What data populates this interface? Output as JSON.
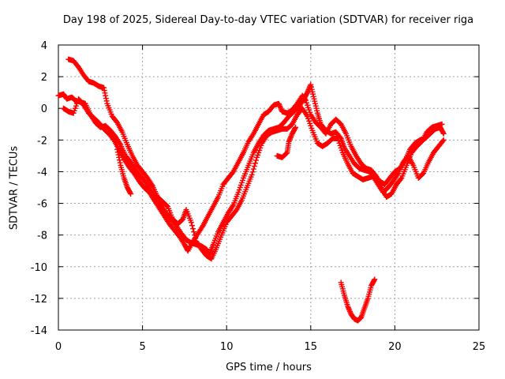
{
  "chart_data": {
    "type": "scatter",
    "title": "Day 198 of 2025, Sidereal Day-to-day VTEC variation (SDTVAR) for receiver riga",
    "xlabel": "GPS time / hours",
    "ylabel": "SDTVAR / TECUs",
    "xlim": [
      0,
      25
    ],
    "ylim": [
      -14,
      4
    ],
    "xticks": [
      "0",
      "5",
      "10",
      "15",
      "20",
      "25"
    ],
    "yticks": [
      "4",
      "2",
      "0",
      "-2",
      "-4",
      "-6",
      "-8",
      "-10",
      "-12",
      "-14"
    ],
    "grid": true,
    "marker": "+",
    "series_color": "#ff0000",
    "series": [
      {
        "points": [
          [
            0.0,
            0.8
          ],
          [
            0.3,
            0.9
          ],
          [
            0.5,
            0.6
          ],
          [
            0.8,
            0.7
          ],
          [
            1.0,
            0.5
          ],
          [
            1.3,
            0.4
          ],
          [
            1.6,
            0.3
          ],
          [
            1.9,
            -0.4
          ],
          [
            2.2,
            -0.9
          ],
          [
            2.5,
            -1.2
          ],
          [
            2.8,
            -1.1
          ],
          [
            3.1,
            -1.4
          ],
          [
            3.4,
            -1.8
          ],
          [
            3.7,
            -2.3
          ],
          [
            4.0,
            -3.0
          ],
          [
            4.3,
            -3.4
          ],
          [
            4.6,
            -3.9
          ],
          [
            4.9,
            -4.3
          ],
          [
            5.2,
            -4.7
          ],
          [
            5.5,
            -5.2
          ],
          [
            5.8,
            -5.7
          ],
          [
            6.1,
            -6.1
          ],
          [
            6.4,
            -6.6
          ],
          [
            6.7,
            -7.0
          ],
          [
            7.0,
            -7.4
          ],
          [
            7.3,
            -7.9
          ],
          [
            7.6,
            -8.3
          ],
          [
            7.9,
            -8.5
          ],
          [
            8.2,
            -8.6
          ],
          [
            8.5,
            -8.7
          ],
          [
            8.8,
            -8.9
          ],
          [
            9.0,
            -9.2
          ],
          [
            9.2,
            -8.6
          ],
          [
            9.5,
            -7.8
          ],
          [
            9.8,
            -7.2
          ],
          [
            10.1,
            -6.6
          ],
          [
            10.4,
            -6.1
          ],
          [
            10.7,
            -5.3
          ],
          [
            11.0,
            -4.4
          ],
          [
            11.3,
            -3.6
          ],
          [
            11.6,
            -2.8
          ],
          [
            11.9,
            -2.2
          ],
          [
            12.2,
            -1.7
          ],
          [
            12.5,
            -1.4
          ],
          [
            12.8,
            -1.3
          ],
          [
            13.1,
            -1.2
          ],
          [
            13.4,
            -0.9
          ],
          [
            13.7,
            -0.5
          ],
          [
            14.0,
            -0.2
          ],
          [
            14.3,
            0.1
          ],
          [
            14.6,
            0.6
          ],
          [
            14.8,
            1.0
          ],
          [
            15.0,
            1.5
          ],
          [
            15.2,
            0.6
          ],
          [
            15.4,
            -0.3
          ],
          [
            15.6,
            -1.0
          ],
          [
            15.9,
            -1.4
          ],
          [
            16.2,
            -1.6
          ],
          [
            16.5,
            -1.5
          ],
          [
            16.8,
            -1.9
          ],
          [
            17.0,
            -2.5
          ],
          [
            17.3,
            -3.0
          ],
          [
            17.6,
            -3.5
          ],
          [
            17.9,
            -3.8
          ],
          [
            18.2,
            -3.9
          ],
          [
            18.5,
            -4.0
          ],
          [
            18.8,
            -4.2
          ],
          [
            19.1,
            -4.6
          ],
          [
            19.4,
            -4.8
          ],
          [
            19.7,
            -4.4
          ],
          [
            20.0,
            -4.0
          ],
          [
            20.3,
            -3.8
          ],
          [
            20.6,
            -3.3
          ],
          [
            20.9,
            -2.6
          ],
          [
            21.2,
            -2.2
          ],
          [
            21.5,
            -2.0
          ],
          [
            21.8,
            -1.9
          ],
          [
            22.1,
            -1.6
          ],
          [
            22.4,
            -1.3
          ],
          [
            22.7,
            -1.2
          ],
          [
            22.9,
            -1.6
          ]
        ]
      },
      {
        "points": [
          [
            0.3,
            0.0
          ],
          [
            0.6,
            -0.2
          ],
          [
            0.9,
            -0.3
          ],
          [
            1.2,
            0.6
          ],
          [
            1.5,
            0.2
          ],
          [
            1.8,
            -0.3
          ],
          [
            2.1,
            -0.6
          ],
          [
            2.4,
            -0.9
          ],
          [
            2.7,
            -1.3
          ],
          [
            3.0,
            -1.6
          ],
          [
            3.3,
            -2.0
          ],
          [
            3.6,
            -2.6
          ],
          [
            3.9,
            -3.2
          ],
          [
            4.2,
            -3.7
          ],
          [
            4.5,
            -4.1
          ],
          [
            4.8,
            -4.6
          ],
          [
            5.1,
            -5.0
          ],
          [
            5.4,
            -5.3
          ],
          [
            5.7,
            -5.8
          ],
          [
            6.0,
            -6.3
          ],
          [
            6.3,
            -6.8
          ],
          [
            6.6,
            -7.3
          ],
          [
            6.9,
            -7.7
          ],
          [
            7.2,
            -8.1
          ],
          [
            7.5,
            -8.6
          ],
          [
            7.7,
            -9.0
          ],
          [
            8.0,
            -8.4
          ],
          [
            8.3,
            -7.9
          ],
          [
            8.6,
            -7.4
          ],
          [
            8.9,
            -6.8
          ],
          [
            9.2,
            -6.2
          ],
          [
            9.5,
            -5.6
          ],
          [
            9.8,
            -4.8
          ],
          [
            10.1,
            -4.4
          ],
          [
            10.4,
            -4.0
          ],
          [
            10.7,
            -3.4
          ],
          [
            11.0,
            -2.8
          ],
          [
            11.3,
            -2.1
          ],
          [
            11.6,
            -1.6
          ],
          [
            11.9,
            -1.0
          ],
          [
            12.2,
            -0.4
          ],
          [
            12.5,
            -0.2
          ],
          [
            12.8,
            0.2
          ],
          [
            13.1,
            0.3
          ],
          [
            13.3,
            -0.2
          ],
          [
            13.6,
            -0.3
          ],
          [
            13.9,
            -0.1
          ],
          [
            14.2,
            0.3
          ],
          [
            14.5,
            0.8
          ],
          [
            14.7,
            0.5
          ],
          [
            15.0,
            -0.4
          ],
          [
            15.3,
            -0.9
          ],
          [
            15.6,
            -1.2
          ],
          [
            15.9,
            -1.6
          ],
          [
            16.2,
            -1.0
          ],
          [
            16.5,
            -0.7
          ],
          [
            16.8,
            -1.0
          ],
          [
            17.1,
            -1.6
          ],
          [
            17.4,
            -2.4
          ],
          [
            17.7,
            -3.0
          ],
          [
            18.0,
            -3.5
          ],
          [
            18.3,
            -3.8
          ],
          [
            18.6,
            -3.9
          ],
          [
            18.9,
            -4.3
          ],
          [
            19.2,
            -5.0
          ],
          [
            19.5,
            -5.6
          ],
          [
            19.8,
            -5.4
          ],
          [
            20.1,
            -4.8
          ],
          [
            20.4,
            -4.4
          ],
          [
            20.7,
            -3.6
          ],
          [
            21.0,
            -2.8
          ],
          [
            21.3,
            -2.4
          ],
          [
            21.6,
            -2.1
          ],
          [
            21.9,
            -1.5
          ],
          [
            22.2,
            -1.2
          ],
          [
            22.5,
            -1.1
          ],
          [
            22.8,
            -1.0
          ]
        ]
      },
      {
        "points": [
          [
            0.6,
            3.1
          ],
          [
            0.9,
            3.0
          ],
          [
            1.2,
            2.6
          ],
          [
            1.5,
            2.1
          ],
          [
            1.8,
            1.7
          ],
          [
            2.1,
            1.6
          ],
          [
            2.4,
            1.4
          ],
          [
            2.7,
            1.3
          ],
          [
            2.9,
            0.3
          ],
          [
            3.2,
            -0.5
          ],
          [
            3.5,
            -0.9
          ],
          [
            3.8,
            -1.5
          ],
          [
            4.1,
            -2.3
          ],
          [
            4.4,
            -3.0
          ],
          [
            4.7,
            -3.6
          ],
          [
            5.0,
            -4.0
          ],
          [
            5.3,
            -4.4
          ],
          [
            5.6,
            -4.9
          ],
          [
            5.9,
            -5.6
          ],
          [
            6.2,
            -5.9
          ],
          [
            6.5,
            -6.2
          ],
          [
            6.8,
            -7.0
          ],
          [
            7.1,
            -7.3
          ],
          [
            7.4,
            -7.0
          ],
          [
            7.6,
            -6.4
          ],
          [
            7.9,
            -7.2
          ],
          [
            8.2,
            -8.4
          ],
          [
            8.5,
            -8.9
          ],
          [
            8.8,
            -9.3
          ],
          [
            9.1,
            -9.5
          ],
          [
            9.4,
            -8.8
          ],
          [
            9.7,
            -8.0
          ],
          [
            10.0,
            -7.2
          ],
          [
            10.3,
            -6.8
          ],
          [
            10.6,
            -6.4
          ],
          [
            10.9,
            -5.8
          ],
          [
            11.2,
            -5.0
          ],
          [
            11.5,
            -4.2
          ],
          [
            11.8,
            -3.1
          ],
          [
            12.1,
            -2.2
          ],
          [
            12.4,
            -1.7
          ],
          [
            12.7,
            -1.5
          ],
          [
            13.0,
            -1.4
          ],
          [
            13.3,
            -1.3
          ],
          [
            13.6,
            -1.3
          ],
          [
            13.9,
            -1.0
          ],
          [
            14.2,
            -0.4
          ],
          [
            14.5,
            0.0
          ],
          [
            14.8,
            -0.5
          ],
          [
            15.1,
            -1.4
          ],
          [
            15.4,
            -2.2
          ],
          [
            15.7,
            -2.4
          ],
          [
            16.0,
            -2.2
          ],
          [
            16.3,
            -1.9
          ],
          [
            16.6,
            -1.9
          ],
          [
            16.9,
            -2.8
          ],
          [
            17.2,
            -3.5
          ],
          [
            17.5,
            -4.1
          ],
          [
            17.8,
            -4.3
          ],
          [
            18.1,
            -4.5
          ],
          [
            18.4,
            -4.4
          ],
          [
            18.7,
            -4.3
          ],
          [
            19.0,
            -4.8
          ],
          [
            19.3,
            -5.3
          ],
          [
            19.6,
            -5.0
          ],
          [
            19.9,
            -4.6
          ],
          [
            20.2,
            -4.1
          ],
          [
            20.5,
            -3.4
          ],
          [
            20.8,
            -3.0
          ],
          [
            21.1,
            -3.6
          ],
          [
            21.4,
            -4.4
          ],
          [
            21.7,
            -4.1
          ],
          [
            22.0,
            -3.4
          ],
          [
            22.3,
            -2.8
          ],
          [
            22.6,
            -2.4
          ],
          [
            22.9,
            -2.0
          ]
        ]
      },
      {
        "points": [
          [
            3.5,
            -2.6
          ],
          [
            3.7,
            -3.6
          ],
          [
            3.9,
            -4.4
          ],
          [
            4.1,
            -5.0
          ],
          [
            4.3,
            -5.4
          ],
          [
            13.0,
            -3.0
          ],
          [
            13.3,
            -3.1
          ],
          [
            13.6,
            -2.8
          ],
          [
            13.7,
            -2.1
          ],
          [
            13.9,
            -1.6
          ],
          [
            14.1,
            -1.2
          ]
        ]
      },
      {
        "points": [
          [
            16.8,
            -11.0
          ],
          [
            17.0,
            -11.8
          ],
          [
            17.2,
            -12.5
          ],
          [
            17.4,
            -13.0
          ],
          [
            17.6,
            -13.3
          ],
          [
            17.8,
            -13.4
          ],
          [
            18.0,
            -13.2
          ],
          [
            18.2,
            -12.6
          ],
          [
            18.4,
            -12.0
          ],
          [
            18.6,
            -11.2
          ],
          [
            18.8,
            -10.8
          ]
        ]
      }
    ]
  }
}
